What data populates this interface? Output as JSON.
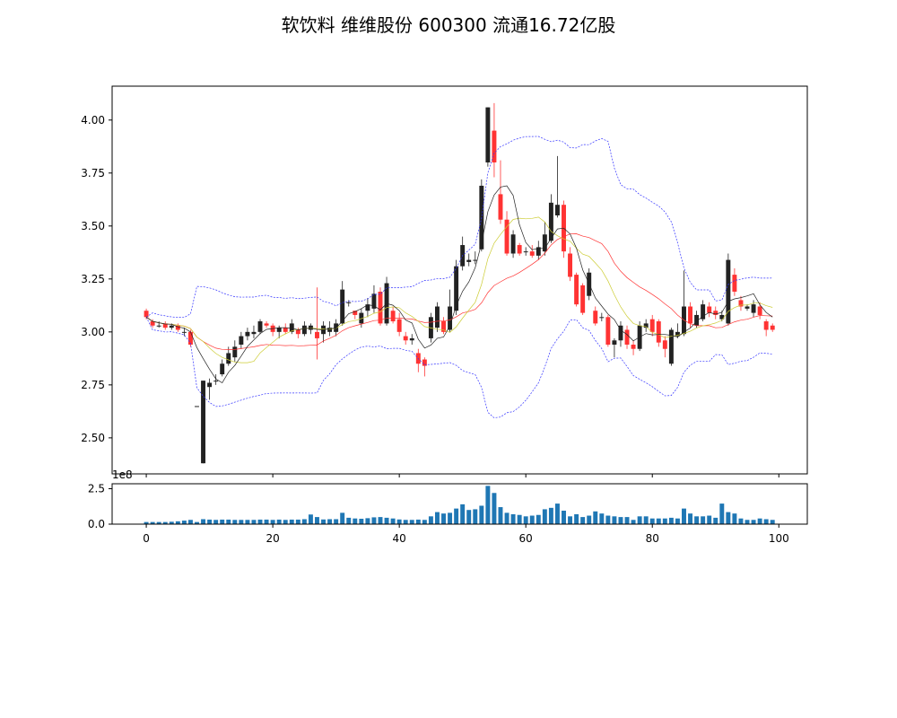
{
  "chart_data": [
    {
      "type": "candlestick",
      "title": "软饮料 维维股份 600300 流通16.72亿股",
      "ylim": [
        2.33,
        4.16
      ],
      "yticks": [
        "2.50",
        "2.75",
        "3.00",
        "3.25",
        "3.50",
        "3.75",
        "4.00"
      ],
      "colors": {
        "up": "#222222",
        "down": "#ff3333",
        "ma5": "#222222",
        "ma10": "#cccc33",
        "ma20": "#ff3333",
        "boll": "#3333ff"
      },
      "candles": [
        [
          0,
          3.1,
          3.07,
          3.11,
          3.06
        ],
        [
          1,
          3.05,
          3.03,
          3.06,
          3.02
        ],
        [
          2,
          3.03,
          3.03,
          3.05,
          3.02
        ],
        [
          3,
          3.04,
          3.02,
          3.05,
          3.01
        ],
        [
          4,
          3.02,
          3.03,
          3.04,
          3.01
        ],
        [
          5,
          3.03,
          3.01,
          3.04,
          3.0
        ],
        [
          6,
          3.0,
          3.0,
          3.02,
          2.98
        ],
        [
          7,
          3.0,
          2.94,
          3.01,
          2.93
        ],
        [
          8,
          2.65,
          2.65,
          2.65,
          2.65
        ],
        [
          9,
          2.38,
          2.77,
          2.77,
          2.38
        ],
        [
          10,
          2.74,
          2.76,
          2.78,
          2.68
        ],
        [
          11,
          2.77,
          2.77,
          2.8,
          2.75
        ],
        [
          12,
          2.8,
          2.85,
          2.87,
          2.79
        ],
        [
          13,
          2.85,
          2.9,
          2.93,
          2.84
        ],
        [
          14,
          2.88,
          2.93,
          2.96,
          2.86
        ],
        [
          15,
          2.94,
          2.98,
          3.0,
          2.92
        ],
        [
          16,
          2.98,
          3.0,
          3.02,
          2.96
        ],
        [
          17,
          2.99,
          3.0,
          3.03,
          2.97
        ],
        [
          18,
          3.0,
          3.05,
          3.06,
          2.99
        ],
        [
          19,
          3.04,
          3.03,
          3.05,
          3.02
        ],
        [
          20,
          3.03,
          3.0,
          3.04,
          2.98
        ],
        [
          21,
          3.0,
          3.02,
          3.03,
          2.97
        ],
        [
          22,
          3.02,
          3.0,
          3.04,
          2.99
        ],
        [
          23,
          3.0,
          3.04,
          3.06,
          2.99
        ],
        [
          24,
          3.01,
          2.99,
          3.02,
          2.97
        ],
        [
          25,
          2.99,
          3.03,
          3.05,
          2.98
        ],
        [
          26,
          3.01,
          3.03,
          3.04,
          2.99
        ],
        [
          27,
          3.0,
          2.97,
          3.21,
          2.87
        ],
        [
          28,
          2.99,
          3.03,
          3.05,
          2.95
        ],
        [
          29,
          3.0,
          3.02,
          3.05,
          2.98
        ],
        [
          30,
          3.0,
          3.04,
          3.06,
          2.98
        ],
        [
          31,
          3.04,
          3.2,
          3.24,
          3.03
        ],
        [
          32,
          3.14,
          3.14,
          3.15,
          3.12
        ],
        [
          33,
          3.1,
          3.08,
          3.1,
          3.06
        ],
        [
          34,
          3.04,
          3.09,
          3.11,
          3.02
        ],
        [
          35,
          3.1,
          3.13,
          3.16,
          3.07
        ],
        [
          36,
          3.11,
          3.18,
          3.22,
          3.09
        ],
        [
          37,
          3.19,
          3.04,
          3.21,
          3.03
        ],
        [
          38,
          3.04,
          3.23,
          3.26,
          3.03
        ],
        [
          39,
          3.1,
          3.05,
          3.12,
          3.04
        ],
        [
          40,
          3.06,
          3.0,
          3.09,
          2.98
        ],
        [
          41,
          2.98,
          2.96,
          3.0,
          2.94
        ],
        [
          42,
          2.96,
          2.97,
          2.99,
          2.94
        ],
        [
          43,
          2.9,
          2.85,
          2.92,
          2.81
        ],
        [
          44,
          2.87,
          2.84,
          2.88,
          2.79
        ],
        [
          45,
          2.97,
          3.07,
          3.09,
          2.95
        ],
        [
          46,
          3.02,
          3.12,
          3.14,
          3.0
        ],
        [
          47,
          3.05,
          3.0,
          3.07,
          2.99
        ],
        [
          48,
          3.01,
          3.12,
          3.2,
          3.0
        ],
        [
          49,
          3.1,
          3.31,
          3.34,
          3.08
        ],
        [
          50,
          3.31,
          3.41,
          3.45,
          3.29
        ],
        [
          51,
          3.33,
          3.34,
          3.37,
          3.31
        ],
        [
          52,
          3.34,
          3.34,
          3.38,
          3.32
        ],
        [
          53,
          3.39,
          3.69,
          3.72,
          3.38
        ],
        [
          54,
          3.8,
          4.06,
          4.06,
          3.78
        ],
        [
          55,
          3.95,
          3.8,
          4.08,
          3.73
        ],
        [
          56,
          3.65,
          3.53,
          3.81,
          3.51
        ],
        [
          57,
          3.53,
          3.37,
          3.57,
          3.36
        ],
        [
          58,
          3.37,
          3.46,
          3.48,
          3.35
        ],
        [
          59,
          3.41,
          3.37,
          3.42,
          3.36
        ],
        [
          60,
          3.38,
          3.38,
          3.4,
          3.36
        ],
        [
          61,
          3.38,
          3.36,
          3.41,
          3.35
        ],
        [
          62,
          3.36,
          3.4,
          3.43,
          3.34
        ],
        [
          63,
          3.38,
          3.46,
          3.52,
          3.36
        ],
        [
          64,
          3.43,
          3.61,
          3.65,
          3.42
        ],
        [
          65,
          3.55,
          3.6,
          3.83,
          3.54
        ],
        [
          66,
          3.6,
          3.38,
          3.62,
          3.35
        ],
        [
          67,
          3.37,
          3.26,
          3.4,
          3.24
        ],
        [
          68,
          3.27,
          3.13,
          3.28,
          3.12
        ],
        [
          69,
          3.22,
          3.09,
          3.23,
          3.08
        ],
        [
          70,
          3.17,
          3.28,
          3.3,
          3.15
        ],
        [
          71,
          3.1,
          3.04,
          3.12,
          3.03
        ],
        [
          72,
          3.07,
          3.07,
          3.09,
          3.05
        ],
        [
          73,
          3.07,
          2.94,
          3.08,
          2.93
        ],
        [
          74,
          2.94,
          2.96,
          2.97,
          2.88
        ],
        [
          75,
          2.96,
          3.03,
          3.05,
          2.93
        ],
        [
          76,
          3.01,
          2.94,
          3.03,
          2.92
        ],
        [
          77,
          2.94,
          2.92,
          2.96,
          2.89
        ],
        [
          78,
          2.92,
          3.03,
          3.05,
          2.91
        ],
        [
          79,
          3.02,
          3.04,
          3.06,
          3.0
        ],
        [
          80,
          3.06,
          3.0,
          3.08,
          2.98
        ],
        [
          81,
          3.05,
          2.95,
          3.06,
          2.93
        ],
        [
          82,
          2.96,
          2.92,
          2.98,
          2.88
        ],
        [
          83,
          2.85,
          3.01,
          3.02,
          2.84
        ],
        [
          84,
          2.98,
          3.0,
          3.04,
          2.97
        ],
        [
          85,
          2.99,
          3.12,
          3.29,
          2.98
        ],
        [
          86,
          3.12,
          3.04,
          3.14,
          3.02
        ],
        [
          87,
          3.03,
          3.08,
          3.1,
          3.02
        ],
        [
          88,
          3.06,
          3.13,
          3.15,
          3.05
        ],
        [
          89,
          3.12,
          3.09,
          3.14,
          3.07
        ],
        [
          90,
          3.1,
          3.08,
          3.12,
          3.06
        ],
        [
          91,
          3.06,
          3.08,
          3.1,
          3.05
        ],
        [
          92,
          3.04,
          3.34,
          3.37,
          3.03
        ],
        [
          93,
          3.27,
          3.19,
          3.3,
          3.17
        ],
        [
          94,
          3.15,
          3.12,
          3.17,
          3.1
        ],
        [
          95,
          3.11,
          3.12,
          3.13,
          3.1
        ],
        [
          96,
          3.09,
          3.13,
          3.15,
          3.07
        ],
        [
          97,
          3.12,
          3.08,
          3.14,
          3.06
        ],
        [
          98,
          3.05,
          3.01,
          3.06,
          2.98
        ],
        [
          99,
          3.03,
          3.01,
          3.04,
          3.0
        ]
      ]
    },
    {
      "type": "bar",
      "ylim": [
        0,
        2.85
      ],
      "yticks": [
        "0.0",
        "2.5"
      ],
      "xlim": [
        -5.4,
        104.5
      ],
      "xticks": [
        "0",
        "20",
        "40",
        "60",
        "80",
        "100"
      ],
      "offset_label": "1e8",
      "color": "#1f77b4",
      "values": [
        0.15,
        0.15,
        0.15,
        0.15,
        0.17,
        0.2,
        0.25,
        0.3,
        0.15,
        0.35,
        0.32,
        0.3,
        0.32,
        0.32,
        0.3,
        0.3,
        0.3,
        0.3,
        0.32,
        0.32,
        0.3,
        0.32,
        0.3,
        0.32,
        0.32,
        0.35,
        0.68,
        0.5,
        0.33,
        0.35,
        0.35,
        0.8,
        0.45,
        0.4,
        0.38,
        0.42,
        0.48,
        0.5,
        0.45,
        0.4,
        0.33,
        0.3,
        0.3,
        0.32,
        0.3,
        0.55,
        0.85,
        0.75,
        0.8,
        1.1,
        1.4,
        1.0,
        1.05,
        1.3,
        2.7,
        2.2,
        1.2,
        0.8,
        0.7,
        0.65,
        0.55,
        0.6,
        0.65,
        1.05,
        1.15,
        1.45,
        0.95,
        0.55,
        0.7,
        0.5,
        0.6,
        0.9,
        0.75,
        0.6,
        0.55,
        0.5,
        0.5,
        0.3,
        0.55,
        0.55,
        0.4,
        0.4,
        0.4,
        0.45,
        0.4,
        1.1,
        0.75,
        0.55,
        0.55,
        0.6,
        0.45,
        1.45,
        0.85,
        0.75,
        0.4,
        0.3,
        0.3,
        0.4,
        0.35,
        0.3
      ]
    }
  ]
}
